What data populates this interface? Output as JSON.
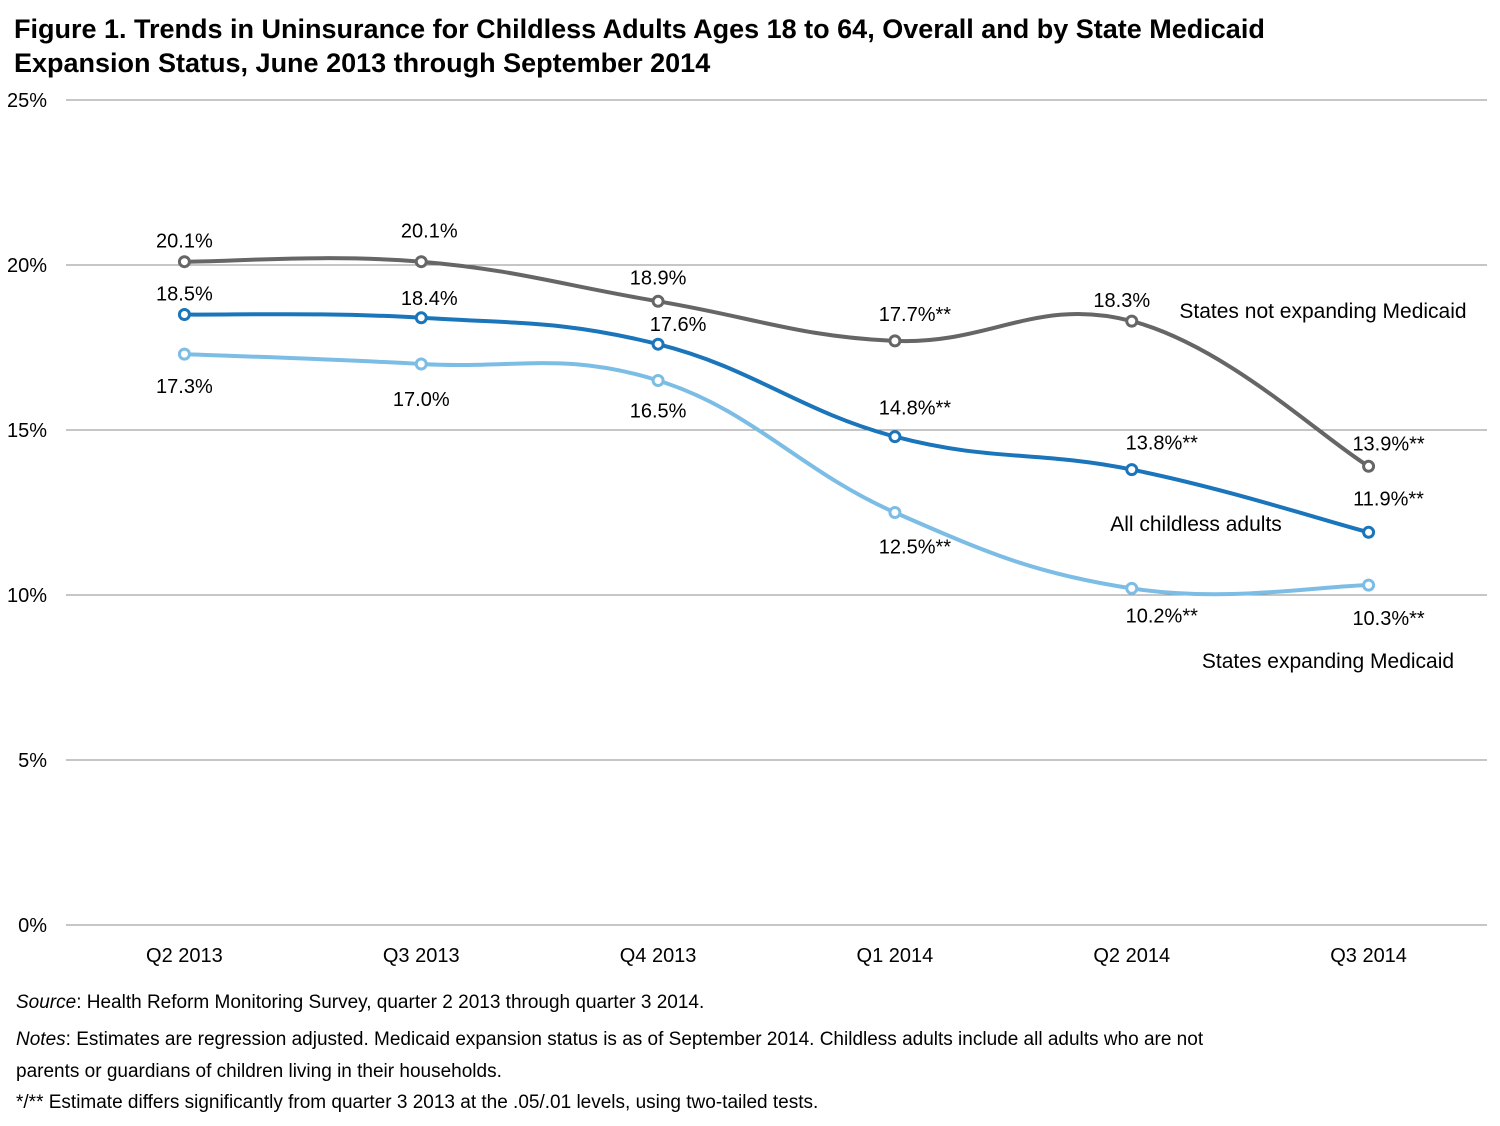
{
  "title_line1": "Figure 1. Trends in Uninsurance for Childless Adults Ages 18 to 64, Overall and by State Medicaid",
  "title_line2": "Expansion Status, June 2013 through September 2014",
  "chart_data": {
    "type": "line",
    "categories": [
      "Q2 2013",
      "Q3 2013",
      "Q4 2013",
      "Q1 2014",
      "Q2 2014",
      "Q3 2014"
    ],
    "ylim": [
      0,
      25
    ],
    "y_ticks": [
      0,
      5,
      10,
      15,
      20,
      25
    ],
    "y_tick_labels": [
      "0%",
      "5%",
      "10%",
      "15%",
      "20%",
      "25%"
    ],
    "grid": true,
    "series": [
      {
        "name": "States not expanding Medicaid",
        "color": "#666666",
        "values": [
          20.1,
          20.1,
          18.9,
          17.7,
          18.3,
          13.9
        ],
        "labels": [
          "20.1%",
          "20.1%",
          "18.9%",
          "17.7%**",
          "18.3%",
          "13.9%**"
        ]
      },
      {
        "name": "All childless adults",
        "color": "#1a75bb",
        "values": [
          18.5,
          18.4,
          17.6,
          14.8,
          13.8,
          11.9
        ],
        "labels": [
          "18.5%",
          "18.4%",
          "17.6%",
          "14.8%**",
          "13.8%**",
          "11.9%**"
        ]
      },
      {
        "name": "States expanding Medicaid",
        "color": "#7cbde6",
        "values": [
          17.3,
          17.0,
          16.5,
          12.5,
          10.2,
          10.3
        ],
        "labels": [
          "17.3%",
          "17.0%",
          "16.5%",
          "12.5%**",
          "10.2%**",
          "10.3%**"
        ]
      }
    ]
  },
  "footnotes": {
    "source_label": "Source",
    "source_text": ": Health Reform Monitoring Survey, quarter 2 2013 through quarter 3 2014.",
    "notes_label": "Notes",
    "notes_text_1": ":  Estimates are regression adjusted. Medicaid expansion status is as of September 2014. Childless adults include all adults who are not",
    "notes_text_2": "parents or guardians of children living in their households.",
    "significance": "*/** Estimate differs significantly from quarter 3 2013 at the .05/.01 levels, using two-tailed tests."
  }
}
